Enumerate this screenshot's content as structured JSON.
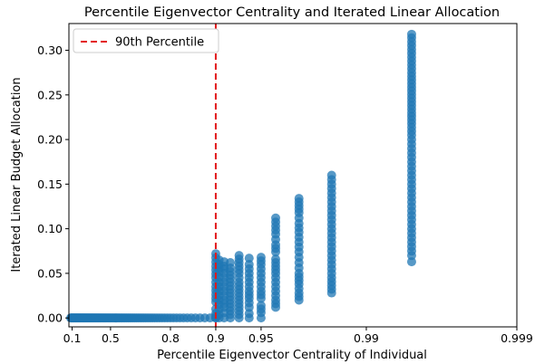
{
  "chart_data": {
    "type": "scatter",
    "title": "Percentile Eigenvector Centrality and Iterated Linear Allocation",
    "xlabel": "Percentile Eigenvector Centrality of Individual",
    "ylabel": "Iterated Linear Budget Allocation",
    "x_scale": "-log10(1 - x)",
    "x_ticks": [
      "0.1",
      "0.5",
      "0.8",
      "0.9",
      "0.95",
      "0.99",
      "0.999"
    ],
    "y_ticks": [
      "0.00",
      "0.05",
      "0.10",
      "0.15",
      "0.20",
      "0.25",
      "0.30"
    ],
    "ylim": [
      -0.01,
      0.33
    ],
    "grid": false,
    "legend_position": "top-left",
    "point_color": "#1f77b4",
    "reference_line": {
      "label": "90th Percentile",
      "x": 0.9,
      "color": "#e31a1c",
      "style": "dashed"
    },
    "series": [
      {
        "name": "",
        "zero_band": {
          "x_range": [
            0.08,
            0.9
          ],
          "y": 0.0
        },
        "columns": [
          {
            "x": 0.9,
            "y": [
              0.0,
              0.002,
              0.005,
              0.01,
              0.018,
              0.022,
              0.035,
              0.045,
              0.058,
              0.072
            ]
          },
          {
            "x": 0.905,
            "y": [
              0.0,
              0.004,
              0.01,
              0.02,
              0.03,
              0.04,
              0.052,
              0.06,
              0.065
            ]
          },
          {
            "x": 0.912,
            "y": [
              0.0,
              0.006,
              0.012,
              0.02,
              0.03,
              0.04,
              0.05,
              0.055,
              0.058,
              0.063
            ]
          },
          {
            "x": 0.92,
            "y": [
              0.0,
              0.008,
              0.016,
              0.024,
              0.032,
              0.04,
              0.048,
              0.056,
              0.062
            ]
          },
          {
            "x": 0.93,
            "y": [
              0.0,
              0.008,
              0.016,
              0.024,
              0.032,
              0.04,
              0.05,
              0.058,
              0.066,
              0.07
            ]
          },
          {
            "x": 0.94,
            "y": [
              0.0,
              0.005,
              0.012,
              0.022,
              0.03,
              0.04,
              0.05,
              0.06,
              0.067
            ]
          },
          {
            "x": 0.95,
            "y": [
              0.0,
              0.006,
              0.014,
              0.022,
              0.03,
              0.04,
              0.05,
              0.06,
              0.068
            ]
          },
          {
            "x": 0.96,
            "y": [
              0.012,
              0.02,
              0.03,
              0.04,
              0.05,
              0.058,
              0.066,
              0.074,
              0.082,
              0.088,
              0.094,
              0.112
            ]
          },
          {
            "x": 0.972,
            "y": [
              0.02,
              0.028,
              0.038,
              0.05,
              0.062,
              0.074,
              0.085,
              0.096,
              0.106,
              0.118,
              0.126,
              0.134
            ]
          },
          {
            "x": 0.983,
            "y": [
              0.028,
              0.045,
              0.055,
              0.065,
              0.08,
              0.095,
              0.11,
              0.125,
              0.135,
              0.145,
              0.155,
              0.16
            ]
          },
          {
            "x": 0.995,
            "y": [
              0.063,
              0.07,
              0.075,
              0.085,
              0.095,
              0.105,
              0.115,
              0.125,
              0.135,
              0.145,
              0.155,
              0.165,
              0.175,
              0.185,
              0.195,
              0.205,
              0.218,
              0.23,
              0.275,
              0.314,
              0.318
            ]
          }
        ]
      }
    ]
  }
}
